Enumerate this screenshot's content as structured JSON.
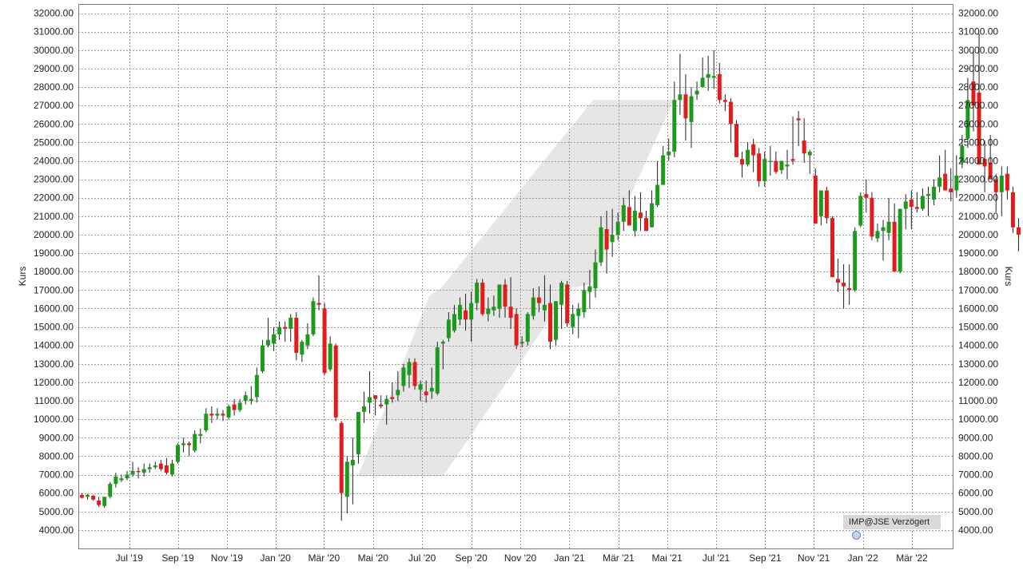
{
  "chart_data": {
    "type": "candlestick",
    "ylabel_left": "Kurs",
    "ylabel_right": "Kurs",
    "ylim": [
      3000,
      32500
    ],
    "y_ticks": [
      4000,
      5000,
      6000,
      7000,
      8000,
      9000,
      10000,
      11000,
      12000,
      13000,
      14000,
      15000,
      16000,
      17000,
      18000,
      19000,
      20000,
      21000,
      22000,
      23000,
      24000,
      25000,
      26000,
      27000,
      28000,
      29000,
      30000,
      31000,
      32000
    ],
    "y_tick_format": "two-decimals",
    "x_tick_labels": [
      "Jul '19",
      "Sep '19",
      "Nov '19",
      "Jan '20",
      "Mär '20",
      "Mai '20",
      "Jul '20",
      "Sep '20",
      "Nov '20",
      "Jan '21",
      "Mär '21",
      "Mai '21",
      "Jul '21",
      "Sep '21",
      "Nov '21",
      "Jan '22",
      "Mär '22"
    ],
    "x_tick_weeks": [
      8.4,
      17.0,
      25.7,
      34.3,
      42.9,
      51.6,
      60.3,
      69.0,
      77.7,
      86.4,
      95.1,
      103.7,
      112.4,
      121.1,
      129.7,
      138.4,
      147.1
    ],
    "grid": true,
    "up_color": "#1a9c1a",
    "down_color": "#e31b1b",
    "wick_color": "#222222",
    "trend_band_color": "#e6e6e6",
    "trend_band": [
      {
        "week": 48.9,
        "y": 6900
      },
      {
        "week": 61.6,
        "y": 16700
      },
      {
        "week": 63.6,
        "y": 17100
      },
      {
        "week": 90.6,
        "y": 27300
      },
      {
        "week": 104.9,
        "y": 27300
      },
      {
        "week": 90.1,
        "y": 17300
      },
      {
        "week": 86.6,
        "y": 17100
      },
      {
        "week": 64.0,
        "y": 6900
      }
    ],
    "source_label": "IMP@JSE Verzögert",
    "weeks": [
      {
        "o": 5900,
        "h": 6000,
        "l": 5700,
        "c": 5750
      },
      {
        "o": 5800,
        "h": 5950,
        "l": 5650,
        "c": 5900
      },
      {
        "o": 5850,
        "h": 5900,
        "l": 5600,
        "c": 5650
      },
      {
        "o": 5600,
        "h": 5800,
        "l": 5250,
        "c": 5350
      },
      {
        "o": 5300,
        "h": 5700,
        "l": 5200,
        "c": 5800
      },
      {
        "o": 5800,
        "h": 6600,
        "l": 5700,
        "c": 6500
      },
      {
        "o": 6500,
        "h": 7100,
        "l": 6300,
        "c": 6900
      },
      {
        "o": 6700,
        "h": 7000,
        "l": 6600,
        "c": 6800
      },
      {
        "o": 6800,
        "h": 7200,
        "l": 6700,
        "c": 7000
      },
      {
        "o": 7000,
        "h": 7700,
        "l": 6900,
        "c": 7200
      },
      {
        "o": 7200,
        "h": 7400,
        "l": 6800,
        "c": 7150
      },
      {
        "o": 7100,
        "h": 7600,
        "l": 6900,
        "c": 7300
      },
      {
        "o": 7300,
        "h": 7600,
        "l": 7100,
        "c": 7400
      },
      {
        "o": 7400,
        "h": 7700,
        "l": 7300,
        "c": 7500
      },
      {
        "o": 7600,
        "h": 7800,
        "l": 7200,
        "c": 7300
      },
      {
        "o": 7500,
        "h": 7900,
        "l": 7000,
        "c": 7100
      },
      {
        "o": 7000,
        "h": 7800,
        "l": 6900,
        "c": 7600
      },
      {
        "o": 7700,
        "h": 8700,
        "l": 7600,
        "c": 8600
      },
      {
        "o": 8600,
        "h": 9000,
        "l": 8200,
        "c": 8700
      },
      {
        "o": 8700,
        "h": 8800,
        "l": 8000,
        "c": 8600
      },
      {
        "o": 8300,
        "h": 9400,
        "l": 8200,
        "c": 9200
      },
      {
        "o": 9100,
        "h": 9500,
        "l": 8700,
        "c": 9200
      },
      {
        "o": 9400,
        "h": 10600,
        "l": 9300,
        "c": 10300
      },
      {
        "o": 10300,
        "h": 10700,
        "l": 9800,
        "c": 10200
      },
      {
        "o": 10200,
        "h": 10600,
        "l": 10000,
        "c": 10300
      },
      {
        "o": 10300,
        "h": 10500,
        "l": 9900,
        "c": 10200
      },
      {
        "o": 10100,
        "h": 10800,
        "l": 10000,
        "c": 10700
      },
      {
        "o": 10800,
        "h": 11100,
        "l": 10200,
        "c": 10500
      },
      {
        "o": 10500,
        "h": 11100,
        "l": 10400,
        "c": 10900
      },
      {
        "o": 11000,
        "h": 11500,
        "l": 10800,
        "c": 11300
      },
      {
        "o": 11000,
        "h": 11800,
        "l": 10800,
        "c": 11100
      },
      {
        "o": 11200,
        "h": 12800,
        "l": 10900,
        "c": 12400
      },
      {
        "o": 12600,
        "h": 14300,
        "l": 12500,
        "c": 14000
      },
      {
        "o": 14000,
        "h": 15500,
        "l": 13900,
        "c": 14300
      },
      {
        "o": 14100,
        "h": 15000,
        "l": 13700,
        "c": 14600
      },
      {
        "o": 14600,
        "h": 15300,
        "l": 14300,
        "c": 15000
      },
      {
        "o": 15000,
        "h": 15300,
        "l": 14200,
        "c": 14900
      },
      {
        "o": 14900,
        "h": 15700,
        "l": 14200,
        "c": 15500
      },
      {
        "o": 15500,
        "h": 15800,
        "l": 13200,
        "c": 13600
      },
      {
        "o": 13500,
        "h": 14300,
        "l": 13100,
        "c": 14200
      },
      {
        "o": 14000,
        "h": 15200,
        "l": 13800,
        "c": 14600
      },
      {
        "o": 14600,
        "h": 16600,
        "l": 14500,
        "c": 16400
      },
      {
        "o": 16300,
        "h": 17800,
        "l": 15900,
        "c": 16200
      },
      {
        "o": 16000,
        "h": 16300,
        "l": 12400,
        "c": 12500
      },
      {
        "o": 12700,
        "h": 14500,
        "l": 12600,
        "c": 14100
      },
      {
        "o": 14000,
        "h": 14100,
        "l": 9900,
        "c": 10100
      },
      {
        "o": 9800,
        "h": 9900,
        "l": 4500,
        "c": 6000
      },
      {
        "o": 5800,
        "h": 8000,
        "l": 4900,
        "c": 7700
      },
      {
        "o": 7500,
        "h": 9000,
        "l": 5400,
        "c": 7800
      },
      {
        "o": 8100,
        "h": 9400,
        "l": 7600,
        "c": 10400
      },
      {
        "o": 10400,
        "h": 11500,
        "l": 9800,
        "c": 10700
      },
      {
        "o": 10900,
        "h": 12600,
        "l": 10300,
        "c": 11200
      },
      {
        "o": 11300,
        "h": 11300,
        "l": 10200,
        "c": 11100
      },
      {
        "o": 10800,
        "h": 11300,
        "l": 10600,
        "c": 10700
      },
      {
        "o": 10800,
        "h": 11300,
        "l": 9700,
        "c": 11100
      },
      {
        "o": 11200,
        "h": 12000,
        "l": 10900,
        "c": 11100
      },
      {
        "o": 11300,
        "h": 12600,
        "l": 11000,
        "c": 11600
      },
      {
        "o": 11800,
        "h": 13000,
        "l": 11500,
        "c": 12800
      },
      {
        "o": 12400,
        "h": 13300,
        "l": 11700,
        "c": 13100
      },
      {
        "o": 13100,
        "h": 13300,
        "l": 11600,
        "c": 11800
      },
      {
        "o": 11600,
        "h": 12100,
        "l": 11000,
        "c": 11900
      },
      {
        "o": 11500,
        "h": 12100,
        "l": 10900,
        "c": 11300
      },
      {
        "o": 11500,
        "h": 12800,
        "l": 11100,
        "c": 11700
      },
      {
        "o": 11400,
        "h": 14200,
        "l": 11300,
        "c": 13900
      },
      {
        "o": 14100,
        "h": 14300,
        "l": 12700,
        "c": 14200
      },
      {
        "o": 14400,
        "h": 15800,
        "l": 14200,
        "c": 15400
      },
      {
        "o": 14800,
        "h": 16200,
        "l": 14700,
        "c": 15700
      },
      {
        "o": 15400,
        "h": 16600,
        "l": 15100,
        "c": 16200
      },
      {
        "o": 15900,
        "h": 16800,
        "l": 14800,
        "c": 15400
      },
      {
        "o": 15400,
        "h": 16900,
        "l": 14200,
        "c": 16300
      },
      {
        "o": 16300,
        "h": 17600,
        "l": 15900,
        "c": 17400
      },
      {
        "o": 17400,
        "h": 17600,
        "l": 15600,
        "c": 15700
      },
      {
        "o": 15700,
        "h": 16600,
        "l": 15300,
        "c": 16000
      },
      {
        "o": 15900,
        "h": 16700,
        "l": 15600,
        "c": 16100
      },
      {
        "o": 16000,
        "h": 17300,
        "l": 15500,
        "c": 17300
      },
      {
        "o": 17300,
        "h": 17600,
        "l": 15500,
        "c": 16100
      },
      {
        "o": 16100,
        "h": 17700,
        "l": 14900,
        "c": 15500
      },
      {
        "o": 15700,
        "h": 16000,
        "l": 13800,
        "c": 14000
      },
      {
        "o": 14100,
        "h": 14500,
        "l": 13900,
        "c": 14200
      },
      {
        "o": 14200,
        "h": 15800,
        "l": 14000,
        "c": 15700
      },
      {
        "o": 15600,
        "h": 17100,
        "l": 15400,
        "c": 16600
      },
      {
        "o": 16600,
        "h": 17200,
        "l": 15800,
        "c": 16300
      },
      {
        "o": 15900,
        "h": 17800,
        "l": 15300,
        "c": 16200
      },
      {
        "o": 16300,
        "h": 17300,
        "l": 13800,
        "c": 14200
      },
      {
        "o": 14300,
        "h": 16400,
        "l": 14000,
        "c": 16400
      },
      {
        "o": 16200,
        "h": 17500,
        "l": 14900,
        "c": 17400
      },
      {
        "o": 17300,
        "h": 17500,
        "l": 15000,
        "c": 15200
      },
      {
        "o": 15000,
        "h": 16200,
        "l": 14600,
        "c": 15700
      },
      {
        "o": 15600,
        "h": 16300,
        "l": 14400,
        "c": 16000
      },
      {
        "o": 15800,
        "h": 17400,
        "l": 15500,
        "c": 17000
      },
      {
        "o": 16900,
        "h": 18100,
        "l": 16000,
        "c": 17200
      },
      {
        "o": 17100,
        "h": 19200,
        "l": 16600,
        "c": 18500
      },
      {
        "o": 18500,
        "h": 21000,
        "l": 18300,
        "c": 20400
      },
      {
        "o": 20300,
        "h": 21300,
        "l": 17900,
        "c": 19200
      },
      {
        "o": 19600,
        "h": 21400,
        "l": 18800,
        "c": 20000
      },
      {
        "o": 20000,
        "h": 21200,
        "l": 19700,
        "c": 20700
      },
      {
        "o": 20700,
        "h": 22000,
        "l": 20200,
        "c": 21600
      },
      {
        "o": 21500,
        "h": 22400,
        "l": 20800,
        "c": 20500
      },
      {
        "o": 20200,
        "h": 22100,
        "l": 19900,
        "c": 21300
      },
      {
        "o": 21200,
        "h": 22300,
        "l": 20200,
        "c": 20900
      },
      {
        "o": 20900,
        "h": 21300,
        "l": 20500,
        "c": 20200
      },
      {
        "o": 20400,
        "h": 22400,
        "l": 20400,
        "c": 21700
      },
      {
        "o": 21600,
        "h": 24000,
        "l": 21500,
        "c": 22700
      },
      {
        "o": 22700,
        "h": 24800,
        "l": 22700,
        "c": 24300
      },
      {
        "o": 24300,
        "h": 25200,
        "l": 24000,
        "c": 24500
      },
      {
        "o": 24500,
        "h": 28300,
        "l": 24200,
        "c": 27300
      },
      {
        "o": 27300,
        "h": 29800,
        "l": 26500,
        "c": 27600
      },
      {
        "o": 27600,
        "h": 28700,
        "l": 25100,
        "c": 26300
      },
      {
        "o": 26100,
        "h": 28000,
        "l": 24700,
        "c": 27500
      },
      {
        "o": 27600,
        "h": 28300,
        "l": 27300,
        "c": 27800
      },
      {
        "o": 28000,
        "h": 29600,
        "l": 28000,
        "c": 28500
      },
      {
        "o": 28500,
        "h": 29700,
        "l": 27800,
        "c": 28700
      },
      {
        "o": 28500,
        "h": 30000,
        "l": 27900,
        "c": 28600
      },
      {
        "o": 28700,
        "h": 29300,
        "l": 27100,
        "c": 27300
      },
      {
        "o": 27300,
        "h": 27600,
        "l": 26700,
        "c": 27200
      },
      {
        "o": 27200,
        "h": 27400,
        "l": 25000,
        "c": 26000
      },
      {
        "o": 26000,
        "h": 26200,
        "l": 24300,
        "c": 24200
      },
      {
        "o": 24100,
        "h": 24500,
        "l": 23100,
        "c": 23800
      },
      {
        "o": 23800,
        "h": 25000,
        "l": 23700,
        "c": 24600
      },
      {
        "o": 24900,
        "h": 25200,
        "l": 23400,
        "c": 24300
      },
      {
        "o": 24400,
        "h": 24700,
        "l": 22600,
        "c": 22900
      },
      {
        "o": 22900,
        "h": 24500,
        "l": 22600,
        "c": 24100
      },
      {
        "o": 24000,
        "h": 24800,
        "l": 23200,
        "c": 24000
      },
      {
        "o": 24000,
        "h": 24500,
        "l": 23300,
        "c": 23400
      },
      {
        "o": 23500,
        "h": 24000,
        "l": 23300,
        "c": 24000
      },
      {
        "o": 23700,
        "h": 24600,
        "l": 23000,
        "c": 23800
      },
      {
        "o": 24100,
        "h": 26400,
        "l": 23800,
        "c": 24000
      },
      {
        "o": 26300,
        "h": 26700,
        "l": 24800,
        "c": 26200
      },
      {
        "o": 25100,
        "h": 26300,
        "l": 23900,
        "c": 24400
      },
      {
        "o": 24300,
        "h": 24600,
        "l": 23300,
        "c": 24500
      },
      {
        "o": 23200,
        "h": 23600,
        "l": 20700,
        "c": 20600
      },
      {
        "o": 21000,
        "h": 22400,
        "l": 20500,
        "c": 22400
      },
      {
        "o": 22400,
        "h": 22600,
        "l": 20600,
        "c": 20900
      },
      {
        "o": 20900,
        "h": 21000,
        "l": 17800,
        "c": 17700
      },
      {
        "o": 17600,
        "h": 18700,
        "l": 16900,
        "c": 17400
      },
      {
        "o": 17400,
        "h": 18400,
        "l": 16000,
        "c": 17200
      },
      {
        "o": 17100,
        "h": 18400,
        "l": 16200,
        "c": 17000
      },
      {
        "o": 17000,
        "h": 20400,
        "l": 16900,
        "c": 20200
      },
      {
        "o": 20500,
        "h": 22300,
        "l": 20400,
        "c": 22100
      },
      {
        "o": 22200,
        "h": 23000,
        "l": 21200,
        "c": 22000
      },
      {
        "o": 22000,
        "h": 22300,
        "l": 19700,
        "c": 19900
      },
      {
        "o": 19800,
        "h": 20600,
        "l": 19600,
        "c": 20200
      },
      {
        "o": 20200,
        "h": 20800,
        "l": 18600,
        "c": 20400
      },
      {
        "o": 20100,
        "h": 22000,
        "l": 19700,
        "c": 20700
      },
      {
        "o": 20700,
        "h": 21700,
        "l": 18200,
        "c": 18000
      },
      {
        "o": 18000,
        "h": 21400,
        "l": 17900,
        "c": 21400
      },
      {
        "o": 21400,
        "h": 22200,
        "l": 20300,
        "c": 21800
      },
      {
        "o": 21900,
        "h": 22400,
        "l": 20300,
        "c": 21500
      },
      {
        "o": 21500,
        "h": 22300,
        "l": 21200,
        "c": 21400
      },
      {
        "o": 21400,
        "h": 22500,
        "l": 21300,
        "c": 22100
      },
      {
        "o": 22100,
        "h": 22600,
        "l": 21000,
        "c": 22200
      },
      {
        "o": 21900,
        "h": 23000,
        "l": 21600,
        "c": 22600
      },
      {
        "o": 22600,
        "h": 24300,
        "l": 22300,
        "c": 23100
      },
      {
        "o": 23300,
        "h": 24600,
        "l": 22400,
        "c": 22400
      },
      {
        "o": 22500,
        "h": 23600,
        "l": 21800,
        "c": 22300
      },
      {
        "o": 22400,
        "h": 24300,
        "l": 22000,
        "c": 23200
      },
      {
        "o": 23900,
        "h": 25400,
        "l": 23600,
        "c": 24800
      },
      {
        "o": 25200,
        "h": 28500,
        "l": 24700,
        "c": 27300
      },
      {
        "o": 28300,
        "h": 30100,
        "l": 25600,
        "c": 27000
      },
      {
        "o": 27700,
        "h": 30900,
        "l": 24200,
        "c": 23800
      },
      {
        "o": 24100,
        "h": 25100,
        "l": 22300,
        "c": 23700
      },
      {
        "o": 23900,
        "h": 25400,
        "l": 23000,
        "c": 23000
      },
      {
        "o": 23000,
        "h": 23300,
        "l": 21200,
        "c": 22300
      },
      {
        "o": 22300,
        "h": 23700,
        "l": 21000,
        "c": 23200
      },
      {
        "o": 23300,
        "h": 23700,
        "l": 21900,
        "c": 22400
      },
      {
        "o": 22300,
        "h": 22600,
        "l": 20100,
        "c": 20400
      },
      {
        "o": 20400,
        "h": 20900,
        "l": 19100,
        "c": 20000
      }
    ]
  }
}
